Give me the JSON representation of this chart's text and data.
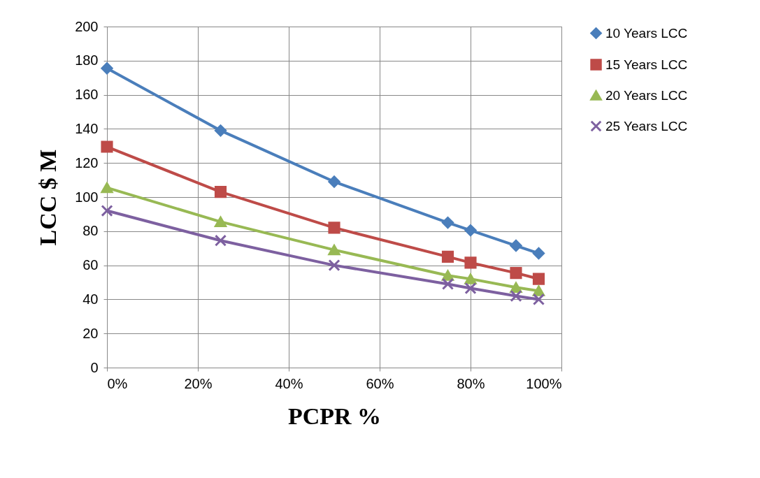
{
  "chart_data": {
    "type": "line",
    "xlabel": "PCPR %",
    "ylabel": "LCC $ M",
    "x": [
      0,
      25,
      50,
      75,
      80,
      90,
      95
    ],
    "xlim": [
      0,
      100
    ],
    "xticks": [
      {
        "value": 0,
        "label": "0%"
      },
      {
        "value": 20,
        "label": "20%"
      },
      {
        "value": 40,
        "label": "40%"
      },
      {
        "value": 60,
        "label": "60%"
      },
      {
        "value": 80,
        "label": "80%"
      },
      {
        "value": 100,
        "label": "100%"
      }
    ],
    "ylim": [
      0,
      200
    ],
    "yticks": [
      0,
      20,
      40,
      60,
      80,
      100,
      120,
      140,
      160,
      180,
      200
    ],
    "grid": true,
    "legend": "right",
    "line_style": "solid",
    "series": [
      {
        "name": "10 Years LCC",
        "color": "#4a7ebb",
        "marker": "diamond",
        "values": [
          175.5,
          139,
          109,
          85,
          80.5,
          71.5,
          67
        ]
      },
      {
        "name": "15 Years LCC",
        "color": "#be4b48",
        "marker": "square",
        "values": [
          129.5,
          103,
          82,
          65,
          61.5,
          55.5,
          52
        ]
      },
      {
        "name": "20 Years LCC",
        "color": "#98b954",
        "marker": "triangle",
        "values": [
          105.5,
          85.5,
          69,
          54,
          52,
          47,
          45
        ]
      },
      {
        "name": "25 Years LCC",
        "color": "#7d60a0",
        "marker": "cross",
        "values": [
          92,
          74.5,
          60,
          49,
          46.5,
          42,
          40
        ]
      }
    ]
  }
}
